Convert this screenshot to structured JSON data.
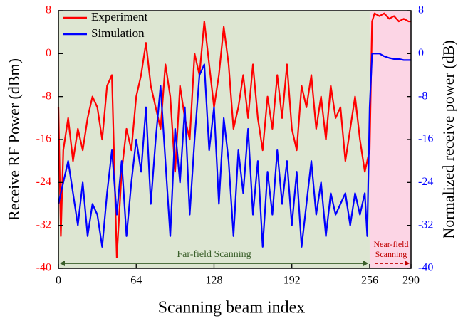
{
  "chart_data": {
    "type": "line",
    "xlabel": "Scanning beam index",
    "ylabel": "Receive RF Power (dBm)",
    "y2label": "Normalized receive power (dB)",
    "x": [
      0,
      2,
      4,
      8,
      12,
      16,
      20,
      24,
      28,
      32,
      36,
      40,
      44,
      48,
      52,
      56,
      60,
      64,
      68,
      72,
      76,
      80,
      84,
      88,
      92,
      96,
      100,
      104,
      108,
      112,
      116,
      120,
      124,
      128,
      132,
      136,
      140,
      144,
      148,
      152,
      156,
      160,
      164,
      168,
      172,
      176,
      180,
      184,
      188,
      192,
      196,
      200,
      204,
      208,
      212,
      216,
      220,
      224,
      228,
      232,
      236,
      240,
      244,
      248,
      252,
      254,
      256,
      258,
      260,
      264,
      268,
      272,
      276,
      280,
      284,
      288,
      290
    ],
    "series": [
      {
        "name": "Experiment",
        "color": "#ff0000",
        "axis": "y",
        "values": [
          -10,
          -34,
          -18,
          -12,
          -20,
          -14,
          -18,
          -12,
          -8,
          -10,
          -16,
          -6,
          -4,
          -38,
          -22,
          -14,
          -18,
          -8,
          -4,
          2,
          -6,
          -10,
          -14,
          -2,
          -8,
          -22,
          -6,
          -12,
          -16,
          0,
          -4,
          6,
          -2,
          -10,
          -4,
          5,
          -2,
          -14,
          -10,
          -4,
          -12,
          -2,
          -12,
          -18,
          -8,
          -14,
          -4,
          -12,
          -2,
          -14,
          -18,
          -6,
          -10,
          -4,
          -14,
          -8,
          -16,
          -6,
          -12,
          -10,
          -20,
          -14,
          -8,
          -16,
          -22,
          -20,
          -18,
          6,
          7.5,
          7,
          7.5,
          6.5,
          7,
          6,
          6.5,
          6,
          6
        ]
      },
      {
        "name": "Simulation",
        "color": "#0000ff",
        "axis": "y2",
        "values": [
          -28,
          -26,
          -24,
          -20,
          -26,
          -32,
          -24,
          -34,
          -28,
          -30,
          -36,
          -26,
          -18,
          -30,
          -20,
          -34,
          -24,
          -16,
          -22,
          -10,
          -28,
          -16,
          -6,
          -20,
          -34,
          -14,
          -24,
          -10,
          -30,
          -16,
          -4,
          -2,
          -18,
          -10,
          -28,
          -12,
          -20,
          -34,
          -18,
          -26,
          -14,
          -30,
          -20,
          -36,
          -22,
          -30,
          -18,
          -28,
          -20,
          -32,
          -22,
          -36,
          -28,
          -20,
          -30,
          -24,
          -34,
          -26,
          -30,
          -28,
          -26,
          -32,
          -26,
          -30,
          -26,
          -34,
          -10,
          0,
          0,
          0,
          -0.5,
          -0.8,
          -1,
          -1,
          -1.2,
          -1.2,
          -1.2
        ]
      }
    ],
    "xlim": [
      0,
      290
    ],
    "xticks": [
      0,
      64,
      128,
      192,
      256,
      290
    ],
    "ylim": [
      -40,
      8
    ],
    "yticks": [
      -40,
      -32,
      -24,
      -16,
      -8,
      0,
      8
    ],
    "y2lim": [
      -40,
      8
    ],
    "y2ticks": [
      -40,
      -32,
      -24,
      -16,
      -8,
      0,
      8
    ],
    "legend": "upper left",
    "regions": [
      {
        "label_lines": [
          "Far-field Scanning"
        ],
        "x": [
          0,
          256
        ],
        "fill": "#dde6d2",
        "arrow_color": "#3a5f2a"
      },
      {
        "label_lines": [
          "Near-field",
          "Scanning"
        ],
        "x": [
          256,
          290
        ],
        "fill": "#fcd5e5",
        "arrow_color": "#c00000"
      }
    ]
  }
}
